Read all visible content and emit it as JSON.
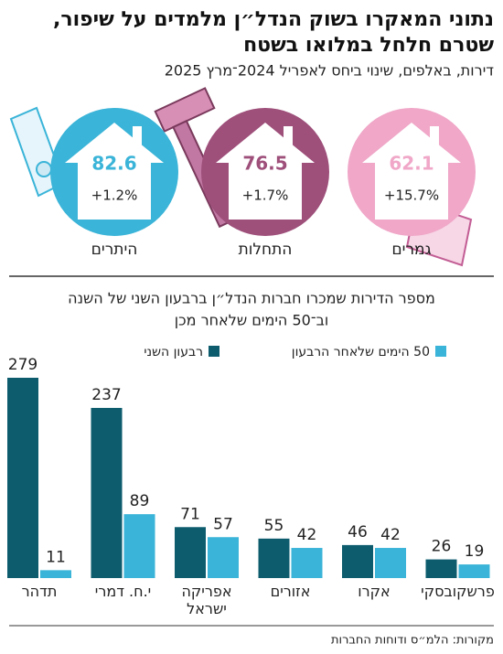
{
  "header": {
    "title_lines": [
      "נתוני המאקרו בשוק הנדל״ן מלמדים על שיפור,",
      "שטרם חלחל במלואו בשטח"
    ],
    "subtitle": "דירות, באלפים, שינוי ביחס לאפריל 2024־מרץ 2025"
  },
  "stats": [
    {
      "label": "היתרים",
      "value": 82.6,
      "change": "+1.2%",
      "color": "#3ab4d8"
    },
    {
      "label": "התחלות",
      "value": 76.5,
      "change": "+1.7%",
      "color": "#9e4f7a"
    },
    {
      "label": "גמרים",
      "value": 62.1,
      "change": "+15.7%",
      "color": "#f0a7c8"
    }
  ],
  "chart_data": {
    "type": "bar",
    "title_lines": [
      "מספר הדירות שמכרו חברות הנדל״ן ברבעון השני של השנה",
      "וב־50 הימים שלאחר מכן"
    ],
    "categories": [
      "תדהר",
      "י.ח. דמרי",
      "אפריקה ישראל",
      "אזורים",
      "אקרו",
      "פרשקובסקי"
    ],
    "series": [
      {
        "name": "רבעון השני",
        "color": "#0d5c6e",
        "values": [
          279,
          237,
          71,
          55,
          46,
          26
        ]
      },
      {
        "name": "50 הימים שלאחר הרבעון",
        "color": "#3ab4d8",
        "values": [
          11,
          89,
          57,
          42,
          42,
          19
        ]
      }
    ]
  },
  "source": "מקורות: הלמ״ס ודוחות החברות"
}
